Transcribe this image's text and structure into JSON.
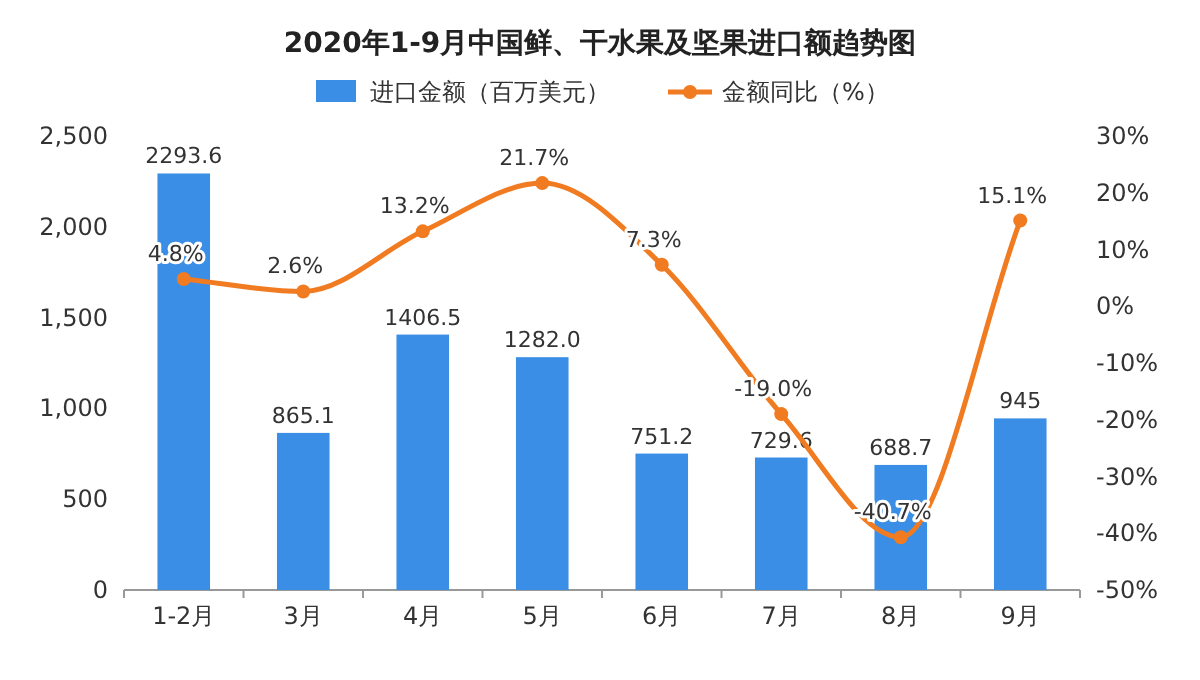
{
  "chart_data": {
    "type": "bar",
    "title": "2020年1-9月中国鲜、干水果及坚果进口额趋势图",
    "categories": [
      "1-2月",
      "3月",
      "4月",
      "5月",
      "6月",
      "7月",
      "8月",
      "9月"
    ],
    "series": [
      {
        "name": "进口金额（百万美元）",
        "color": "#3a8ee6",
        "values": [
          2293.6,
          865.1,
          1406.5,
          1282.0,
          751.2,
          729.6,
          688.7,
          945
        ],
        "value_labels": [
          "2293.6",
          "865.1",
          "1406.5",
          "1282.0",
          "751.2",
          "729.6",
          "688.7",
          "945"
        ]
      },
      {
        "name": "金额同比（%）",
        "type": "line",
        "axis": "y2",
        "color": "#f07b21",
        "marker": "circle",
        "values": [
          4.8,
          2.6,
          13.2,
          21.7,
          7.3,
          -19.0,
          -40.7,
          15.1
        ],
        "value_labels": [
          "4.8%",
          "2.6%",
          "13.2%",
          "21.7%",
          "7.3%",
          "-19.0%",
          "-40.7%",
          "15.1%"
        ]
      }
    ],
    "ylim": [
      0,
      2500
    ],
    "yticks": [
      0,
      500,
      {
        "value": 1000,
        "label": "1,000"
      },
      {
        "value": 1500,
        "label": "1,500"
      },
      {
        "value": 2000,
        "label": "2,000"
      },
      {
        "value": 2500,
        "label": "2,500"
      }
    ],
    "y2lim": [
      -50,
      30
    ],
    "y2ticks": [
      {
        "value": -50,
        "label": "-50%"
      },
      {
        "value": -40,
        "label": "-40%"
      },
      {
        "value": -30,
        "label": "-30%"
      },
      {
        "value": -20,
        "label": "-20%"
      },
      {
        "value": -10,
        "label": "-10%"
      },
      {
        "value": 0,
        "label": "0%"
      },
      {
        "value": 10,
        "label": "10%"
      },
      {
        "value": 20,
        "label": "20%"
      },
      {
        "value": 30,
        "label": "30%"
      }
    ],
    "legend": "top"
  }
}
